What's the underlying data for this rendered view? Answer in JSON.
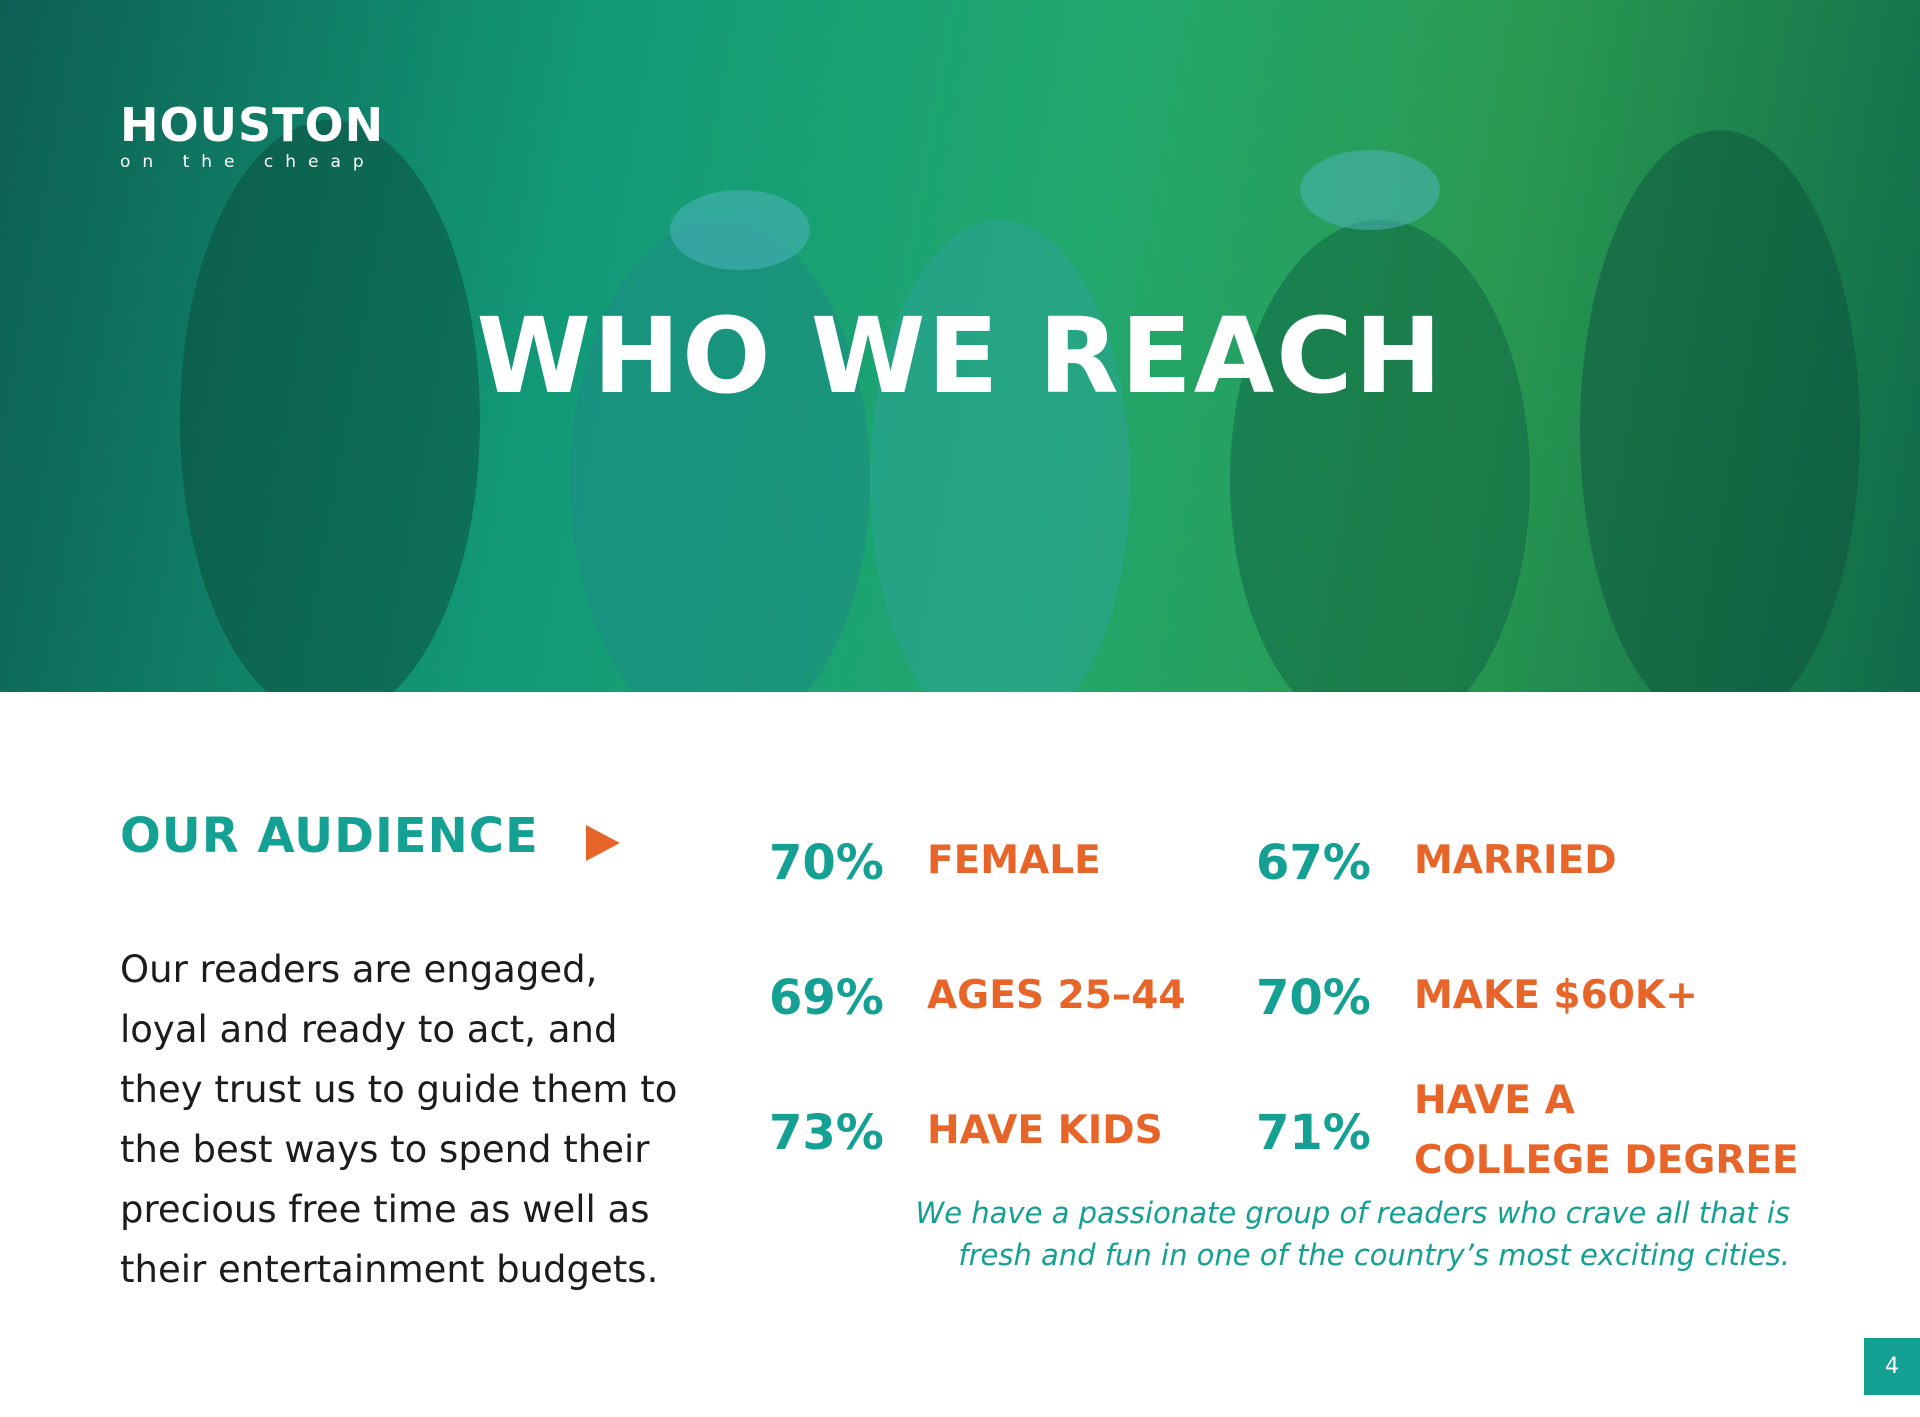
{
  "header": {
    "logo_title": "HOUSTON",
    "logo_tagline": "on the cheap",
    "title": "WHO WE REACH"
  },
  "audience": {
    "heading": "OUR AUDIENCE",
    "body_lines": [
      "Our readers are engaged,",
      "loyal and ready to act, and",
      "they trust us to guide them to",
      "the best ways to spend their",
      "precious free time as well as",
      "their entertainment budgets."
    ]
  },
  "stats": [
    {
      "value": "70%",
      "label_lines": [
        "FEMALE"
      ]
    },
    {
      "value": "67%",
      "label_lines": [
        "MARRIED"
      ]
    },
    {
      "value": "69%",
      "label_lines": [
        "AGES 25–44"
      ]
    },
    {
      "value": "70%",
      "label_lines": [
        "MAKE $60K+"
      ]
    },
    {
      "value": "73%",
      "label_lines": [
        "HAVE KIDS"
      ]
    },
    {
      "value": "71%",
      "label_lines": [
        "HAVE A",
        "COLLEGE DEGREE"
      ]
    }
  ],
  "quote_lines": [
    "We have a passionate group of readers who crave all that is",
    "fresh and fun in one of the country’s most exciting cities."
  ],
  "page_number": "4"
}
